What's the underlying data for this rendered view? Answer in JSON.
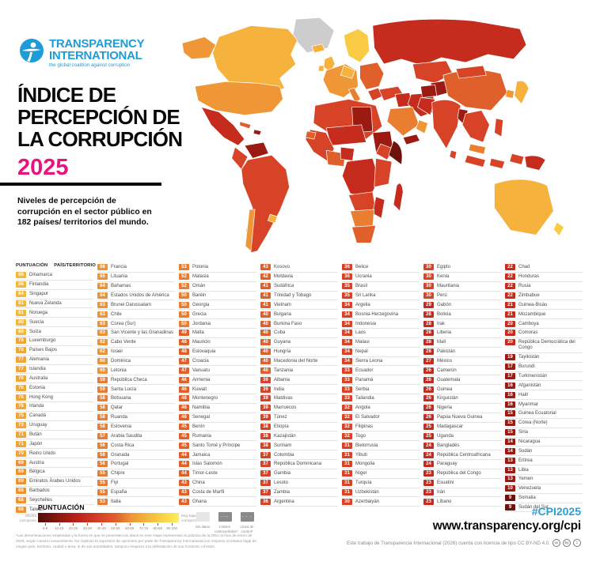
{
  "header": {
    "logo_line1": "TRANSPARENCY",
    "logo_line2": "INTERNATIONAL",
    "logo_tagline": "the global coalition against corruption",
    "title_lines": [
      "ÍNDICE DE",
      "PERCEPCIÓN DE",
      "LA CORRUPCIÓN"
    ],
    "year": "2025",
    "subtitle": "Niveles de percepción de corrupción en el sector público en 182 países/ territorios del mundo."
  },
  "table": {
    "header_score": "PUNTUACIÓN",
    "header_country": "PAÍS/TERRITORIO",
    "columns": [
      [
        {
          "score": 89,
          "name": "Dinamarca"
        },
        {
          "score": 88,
          "name": "Finlandia"
        },
        {
          "score": 84,
          "name": "Singapur"
        },
        {
          "score": 81,
          "name": "Nueva Zelanda"
        },
        {
          "score": 81,
          "name": "Noruega"
        },
        {
          "score": 80,
          "name": "Suecia"
        },
        {
          "score": 80,
          "name": "Suiza"
        },
        {
          "score": 78,
          "name": "Luxemburgo"
        },
        {
          "score": 78,
          "name": "Países Bajos"
        },
        {
          "score": 77,
          "name": "Alemania"
        },
        {
          "score": 77,
          "name": "Islandia"
        },
        {
          "score": 76,
          "name": "Australia"
        },
        {
          "score": 76,
          "name": "Estonia"
        },
        {
          "score": 76,
          "name": "Hong Kong"
        },
        {
          "score": 76,
          "name": "Irlanda"
        },
        {
          "score": 75,
          "name": "Canadá"
        },
        {
          "score": 73,
          "name": "Uruguay"
        },
        {
          "score": 71,
          "name": "Bután"
        },
        {
          "score": 71,
          "name": "Japón"
        },
        {
          "score": 70,
          "name": "Reino Unido"
        },
        {
          "score": 69,
          "name": "Austria"
        },
        {
          "score": 69,
          "name": "Bélgica"
        },
        {
          "score": 69,
          "name": "Emiratos Árabes Unidos"
        },
        {
          "score": 68,
          "name": "Barbados"
        },
        {
          "score": 68,
          "name": "Seychelles"
        },
        {
          "score": 68,
          "name": "Taiwán"
        }
      ],
      [
        {
          "score": 66,
          "name": "Francia"
        },
        {
          "score": 65,
          "name": "Lituania"
        },
        {
          "score": 64,
          "name": "Bahamas"
        },
        {
          "score": 64,
          "name": "Estados Unidos de América"
        },
        {
          "score": 63,
          "name": "Brunei Darussalam"
        },
        {
          "score": 63,
          "name": "Chile"
        },
        {
          "score": 63,
          "name": "Corea (Sur)"
        },
        {
          "score": 63,
          "name": "San Vicente y las Granadinas"
        },
        {
          "score": 62,
          "name": "Cabo Verde"
        },
        {
          "score": 62,
          "name": "Israel"
        },
        {
          "score": 60,
          "name": "Dominica"
        },
        {
          "score": 60,
          "name": "Letonia"
        },
        {
          "score": 59,
          "name": "República Checa"
        },
        {
          "score": 59,
          "name": "Santa Lucía"
        },
        {
          "score": 58,
          "name": "Botsuana"
        },
        {
          "score": 58,
          "name": "Qatar"
        },
        {
          "score": 58,
          "name": "Ruanda"
        },
        {
          "score": 58,
          "name": "Eslovenia"
        },
        {
          "score": 57,
          "name": "Arabia Saudita"
        },
        {
          "score": 56,
          "name": "Costa Rica"
        },
        {
          "score": 56,
          "name": "Granada"
        },
        {
          "score": 56,
          "name": "Portugal"
        },
        {
          "score": 55,
          "name": "Chipre"
        },
        {
          "score": 55,
          "name": "Fiyi"
        },
        {
          "score": 55,
          "name": "España"
        },
        {
          "score": 53,
          "name": "Italia"
        }
      ],
      [
        {
          "score": 53,
          "name": "Polonia"
        },
        {
          "score": 52,
          "name": "Malasia"
        },
        {
          "score": 52,
          "name": "Omán"
        },
        {
          "score": 50,
          "name": "Baréin"
        },
        {
          "score": 50,
          "name": "Georgia"
        },
        {
          "score": 50,
          "name": "Grecia"
        },
        {
          "score": 50,
          "name": "Jordania"
        },
        {
          "score": 49,
          "name": "Malta"
        },
        {
          "score": 48,
          "name": "Mauricio"
        },
        {
          "score": 48,
          "name": "Eslovaquia"
        },
        {
          "score": 47,
          "name": "Croacia"
        },
        {
          "score": 47,
          "name": "Vanuatu"
        },
        {
          "score": 46,
          "name": "Armenia"
        },
        {
          "score": 46,
          "name": "Kuwait"
        },
        {
          "score": 46,
          "name": "Montenegro"
        },
        {
          "score": 46,
          "name": "Namibia"
        },
        {
          "score": 46,
          "name": "Senegal"
        },
        {
          "score": 45,
          "name": "Benín"
        },
        {
          "score": 45,
          "name": "Rumania"
        },
        {
          "score": 45,
          "name": "Santo Tomé y Príncipe"
        },
        {
          "score": 44,
          "name": "Jamaica"
        },
        {
          "score": 44,
          "name": "Islas Salomón"
        },
        {
          "score": 44,
          "name": "Timor-Leste"
        },
        {
          "score": 43,
          "name": "China"
        },
        {
          "score": 43,
          "name": "Costa de Marfil"
        },
        {
          "score": 43,
          "name": "Ghana"
        }
      ],
      [
        {
          "score": 43,
          "name": "Kosovo"
        },
        {
          "score": 42,
          "name": "Moldavia"
        },
        {
          "score": 41,
          "name": "Sudáfrica"
        },
        {
          "score": 41,
          "name": "Trinidad y Tobago"
        },
        {
          "score": 41,
          "name": "Vietnam"
        },
        {
          "score": 40,
          "name": "Bulgaria"
        },
        {
          "score": 40,
          "name": "Burkina Faso"
        },
        {
          "score": 40,
          "name": "Cuba"
        },
        {
          "score": 40,
          "name": "Guyana"
        },
        {
          "score": 40,
          "name": "Hungría"
        },
        {
          "score": 40,
          "name": "Macedonia del Norte"
        },
        {
          "score": 40,
          "name": "Tanzania"
        },
        {
          "score": 39,
          "name": "Albania"
        },
        {
          "score": 39,
          "name": "India"
        },
        {
          "score": 39,
          "name": "Maldivas"
        },
        {
          "score": 39,
          "name": "Marruecos"
        },
        {
          "score": 39,
          "name": "Túnez"
        },
        {
          "score": 38,
          "name": "Etiopía"
        },
        {
          "score": 38,
          "name": "Kazajistán"
        },
        {
          "score": 38,
          "name": "Surinam"
        },
        {
          "score": 37,
          "name": "Colombia"
        },
        {
          "score": 37,
          "name": "República Dominicana"
        },
        {
          "score": 37,
          "name": "Gambia"
        },
        {
          "score": 37,
          "name": "Lesoto"
        },
        {
          "score": 37,
          "name": "Zambia"
        },
        {
          "score": 36,
          "name": "Argentina"
        }
      ],
      [
        {
          "score": 36,
          "name": "Belice"
        },
        {
          "score": 36,
          "name": "Ucrania"
        },
        {
          "score": 35,
          "name": "Brasil"
        },
        {
          "score": 35,
          "name": "Sri Lanka"
        },
        {
          "score": 34,
          "name": "Argelia"
        },
        {
          "score": 34,
          "name": "Bosnia-Herzegovina"
        },
        {
          "score": 34,
          "name": "Indonesia"
        },
        {
          "score": 34,
          "name": "Laos"
        },
        {
          "score": 34,
          "name": "Malaui"
        },
        {
          "score": 34,
          "name": "Nepal"
        },
        {
          "score": 34,
          "name": "Sierra Leona"
        },
        {
          "score": 33,
          "name": "Ecuador"
        },
        {
          "score": 33,
          "name": "Panamá"
        },
        {
          "score": 33,
          "name": "Serbia"
        },
        {
          "score": 33,
          "name": "Tailandia"
        },
        {
          "score": 32,
          "name": "Angola"
        },
        {
          "score": 32,
          "name": "El Salvador"
        },
        {
          "score": 32,
          "name": "Filipinas"
        },
        {
          "score": 32,
          "name": "Togo"
        },
        {
          "score": 31,
          "name": "Bielorrusia"
        },
        {
          "score": 31,
          "name": "Yibuti"
        },
        {
          "score": 31,
          "name": "Mongolia"
        },
        {
          "score": 31,
          "name": "Níger"
        },
        {
          "score": 31,
          "name": "Turquía"
        },
        {
          "score": 31,
          "name": "Uzbekistán"
        },
        {
          "score": 30,
          "name": "Azerbaiyán"
        }
      ],
      [
        {
          "score": 30,
          "name": "Egipto"
        },
        {
          "score": 30,
          "name": "Kenia"
        },
        {
          "score": 30,
          "name": "Mauritania"
        },
        {
          "score": 30,
          "name": "Perú"
        },
        {
          "score": 29,
          "name": "Gabón"
        },
        {
          "score": 28,
          "name": "Bolivia"
        },
        {
          "score": 28,
          "name": "Irak"
        },
        {
          "score": 28,
          "name": "Liberia"
        },
        {
          "score": 28,
          "name": "Malí"
        },
        {
          "score": 28,
          "name": "Pakistán"
        },
        {
          "score": 27,
          "name": "México"
        },
        {
          "score": 26,
          "name": "Camerún"
        },
        {
          "score": 26,
          "name": "Guatemala"
        },
        {
          "score": 26,
          "name": "Guinea"
        },
        {
          "score": 26,
          "name": "Kirguistán"
        },
        {
          "score": 26,
          "name": "Nigeria"
        },
        {
          "score": 26,
          "name": "Papúa Nueva Guinea"
        },
        {
          "score": 25,
          "name": "Madagascar"
        },
        {
          "score": 25,
          "name": "Uganda"
        },
        {
          "score": 24,
          "name": "Bangladés"
        },
        {
          "score": 24,
          "name": "República Centroafricana"
        },
        {
          "score": 24,
          "name": "Paraguay"
        },
        {
          "score": 23,
          "name": "República del Congo"
        },
        {
          "score": 23,
          "name": "Esuatini"
        },
        {
          "score": 23,
          "name": "Irán"
        },
        {
          "score": 23,
          "name": "Líbano"
        }
      ],
      [
        {
          "score": 22,
          "name": "Chad"
        },
        {
          "score": 22,
          "name": "Honduras"
        },
        {
          "score": 22,
          "name": "Rusia"
        },
        {
          "score": 22,
          "name": "Zimbabue"
        },
        {
          "score": 21,
          "name": "Guinea-Bisáu"
        },
        {
          "score": 21,
          "name": "Mozambique"
        },
        {
          "score": 20,
          "name": "Camboya"
        },
        {
          "score": 20,
          "name": "Comoras"
        },
        {
          "score": 20,
          "name": "República Democrática del Congo"
        },
        {
          "score": 19,
          "name": "Tayikistán"
        },
        {
          "score": 17,
          "name": "Burundi"
        },
        {
          "score": 17,
          "name": "Turkmenistán"
        },
        {
          "score": 16,
          "name": "Afganistán"
        },
        {
          "score": 16,
          "name": "Haití"
        },
        {
          "score": 16,
          "name": "Myanmar"
        },
        {
          "score": 15,
          "name": "Guinea Ecuatorial"
        },
        {
          "score": 15,
          "name": "Corea (Norte)"
        },
        {
          "score": 15,
          "name": "Siria"
        },
        {
          "score": 14,
          "name": "Nicaragua"
        },
        {
          "score": 14,
          "name": "Sudán"
        },
        {
          "score": 13,
          "name": "Eritrea"
        },
        {
          "score": 13,
          "name": "Libia"
        },
        {
          "score": 13,
          "name": "Yemen"
        },
        {
          "score": 10,
          "name": "Venezuela"
        },
        {
          "score": 9,
          "name": "Somalia"
        },
        {
          "score": 9,
          "name": "Sudán del Sur"
        }
      ]
    ]
  },
  "legend": {
    "title": "PUNTUACIÓN",
    "left_label": "Mucha corrupción",
    "right_label": "Muy baja corrupción",
    "ticks": [
      "0-9",
      "10-19",
      "20-29",
      "30-39",
      "40-49",
      "50-59",
      "60-69",
      "70-79",
      "80-89",
      "90-100"
    ],
    "gradient": [
      "#4E100B",
      "#7E150F",
      "#A81E15",
      "#C52C1E",
      "#D64326",
      "#E0602B",
      "#EE9837",
      "#F3B63E",
      "#F9D445",
      "#FFEE58"
    ],
    "extras": [
      {
        "label": "Sin datos",
        "swatch": "#E6E6E6",
        "glyph": ""
      },
      {
        "label": "Límites controvertidos*",
        "swatch": "#8A8A8A",
        "glyph": "----"
      },
      {
        "label": "Línea de control*",
        "swatch": "#8A8A8A",
        "glyph": "- - -"
      }
    ]
  },
  "footer": {
    "footnote": "*Las denominaciones empleadas y la forma en que se presentan los datos en este mapa representan la práctica de la ONU al mes de enero de 2026, según nuestro conocimiento. No implican la expresión de opiniones por parte de Transparency International con respecto al estatus legal de ningún país, territorio, ciudad o área, ni de sus autoridades, tampoco respecto a la delimitación de sus fronteras o límites.",
    "hashtag": "#CPI2025",
    "url": "www.transparency.org/cpi",
    "license": "Este trabajo de Transparencia Internacional (2026) cuenta con licencia de tipo CC BY-ND 4.0.",
    "cc_icons": [
      "cc",
      "by",
      "="
    ]
  },
  "colors": {
    "brand_blue": "#1E9CD7",
    "magenta": "#E4157E",
    "score_bands": [
      {
        "min": 80,
        "color": "#F3B73C"
      },
      {
        "min": 70,
        "color": "#F1A439"
      },
      {
        "min": 60,
        "color": "#EE9236"
      },
      {
        "min": 50,
        "color": "#E87C30"
      },
      {
        "min": 40,
        "color": "#E0602B"
      },
      {
        "min": 30,
        "color": "#D64326"
      },
      {
        "min": 20,
        "color": "#C52C1E"
      },
      {
        "min": 10,
        "color": "#9B1B13"
      },
      {
        "min": 0,
        "color": "#6E120C"
      }
    ],
    "map_bands": {
      "80": "#F9CB45",
      "70": "#F5B23C",
      "60": "#EF9737",
      "50": "#E97E30",
      "40": "#E0602B",
      "30": "#D64326",
      "20": "#C52C1E",
      "10": "#9B1B13",
      "0": "#6E120C",
      "nodata": "#CDCDCD"
    }
  }
}
